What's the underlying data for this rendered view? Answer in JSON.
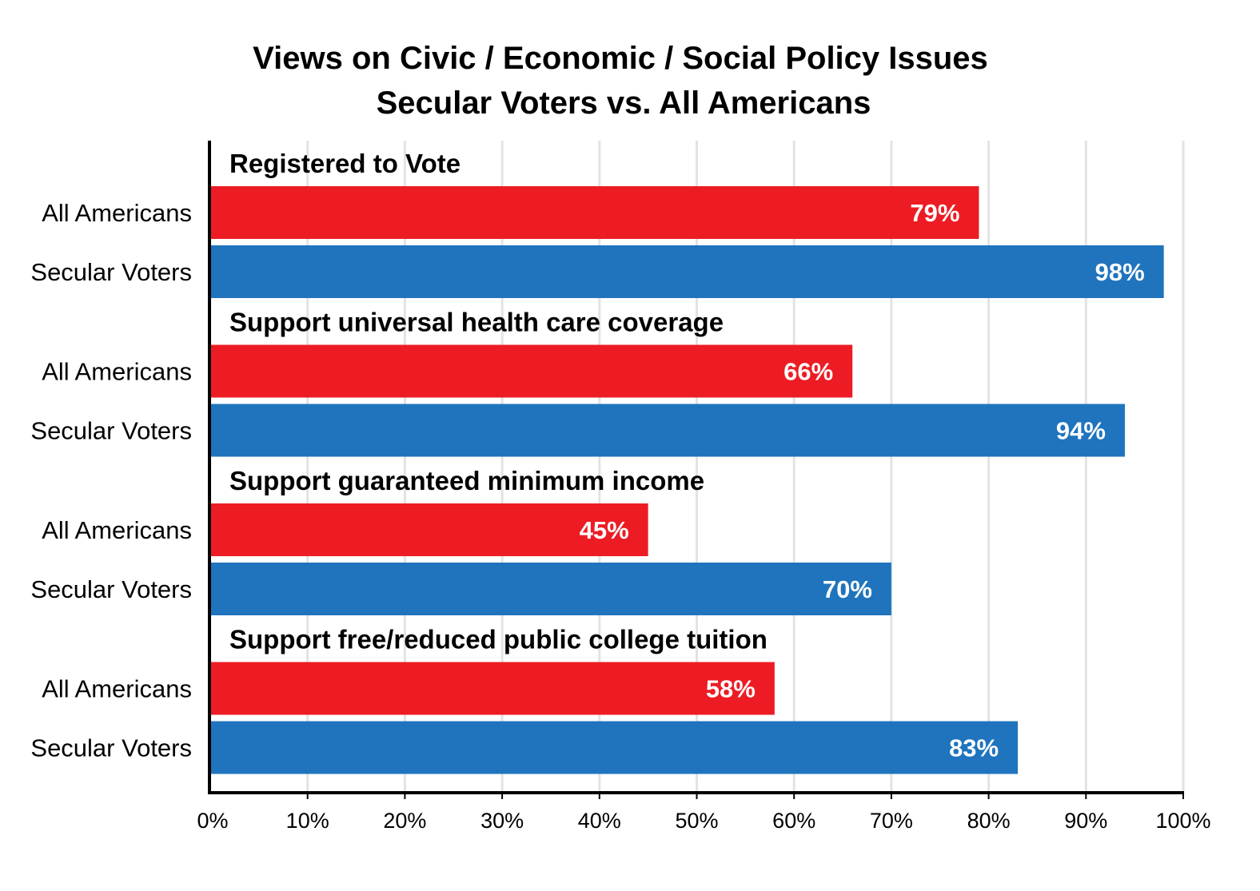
{
  "colors": {
    "All Americans": "#ed1c24",
    "Secular Voters": "#1f74bd",
    "grid": "#e3e3e3",
    "axis": "#000000"
  },
  "chart_data": {
    "type": "bar",
    "orientation": "horizontal",
    "title": "Views on Civic / Economic / Social Policy Issues",
    "subtitle": "Secular Voters vs. All Americans",
    "xlim": [
      0,
      100
    ],
    "x_ticks": [
      "0%",
      "10%",
      "20%",
      "30%",
      "40%",
      "50%",
      "60%",
      "70%",
      "80%",
      "90%",
      "100%"
    ],
    "grid": true,
    "groups": [
      {
        "label": "Registered to Vote",
        "bars": [
          {
            "series": "All Americans",
            "value": 79,
            "label": "79%"
          },
          {
            "series": "Secular Voters",
            "value": 98,
            "label": "98%"
          }
        ]
      },
      {
        "label": "Support universal health care coverage",
        "bars": [
          {
            "series": "All Americans",
            "value": 66,
            "label": "66%"
          },
          {
            "series": "Secular Voters",
            "value": 94,
            "label": "94%"
          }
        ]
      },
      {
        "label": "Support guaranteed minimum income",
        "bars": [
          {
            "series": "All Americans",
            "value": 45,
            "label": "45%"
          },
          {
            "series": "Secular Voters",
            "value": 70,
            "label": "70%"
          }
        ]
      },
      {
        "label": "Support free/reduced public college tuition",
        "bars": [
          {
            "series": "All Americans",
            "value": 58,
            "label": "58%"
          },
          {
            "series": "Secular Voters",
            "value": 83,
            "label": "83%"
          }
        ]
      }
    ]
  }
}
